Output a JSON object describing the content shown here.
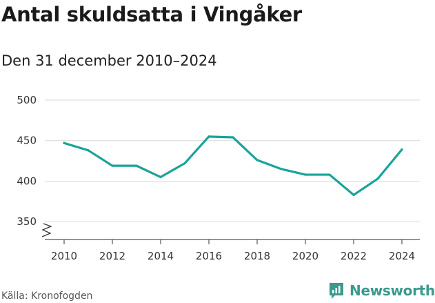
{
  "header": {
    "title": "Antal skuldsatta i Vingåker",
    "subtitle": "Den 31 december 2010–2024"
  },
  "footer": {
    "source": "Källa: Kronofogden",
    "brand": "Newsworthy"
  },
  "colors": {
    "line": "#1aa39a",
    "grid": "#d9d9d9",
    "axis": "#555555",
    "brand": "#3a9a8e"
  },
  "chart_data": {
    "type": "line",
    "title": "Antal skuldsatta i Vingåker",
    "subtitle": "Den 31 december 2010–2024",
    "xlabel": "",
    "ylabel": "",
    "x": [
      2010,
      2011,
      2012,
      2013,
      2014,
      2015,
      2016,
      2017,
      2018,
      2019,
      2020,
      2021,
      2022,
      2023,
      2024
    ],
    "series": [
      {
        "values": [
          447,
          438,
          419,
          419,
          405,
          422,
          455,
          454,
          426,
          415,
          408,
          408,
          383,
          403,
          439
        ]
      }
    ],
    "xticks": [
      "2010",
      "2012",
      "2014",
      "2016",
      "2018",
      "2020",
      "2022",
      "2024"
    ],
    "yticks": [
      "350",
      "400",
      "450",
      "500"
    ],
    "ylim": [
      328,
      500
    ],
    "xlim": [
      2010,
      2024
    ],
    "y_axis_break": true,
    "grid": "horizontal",
    "legend": "none"
  }
}
